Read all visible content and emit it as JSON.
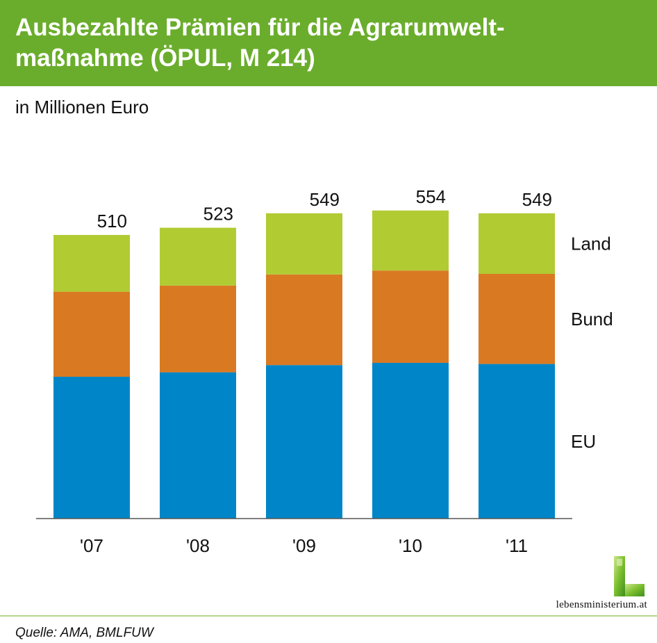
{
  "header": {
    "title_line1": "Ausbezahlte Prämien für die Agrarumwelt-",
    "title_line2": "maßnahme (ÖPUL, M 214)"
  },
  "subtitle": "in Millionen Euro",
  "colors": {
    "header_bg": "#6aad2c",
    "eu": "#0086c8",
    "bund": "#d97a22",
    "land": "#b1cb33"
  },
  "chart_data": {
    "type": "bar",
    "stacked": true,
    "title": "Ausbezahlte Prämien für die Agrarumweltmaßnahme (ÖPUL, M 214)",
    "ylabel": "in Millionen Euro",
    "xlabel": "",
    "categories": [
      "'07",
      "'08",
      "'09",
      "'10",
      "'11"
    ],
    "series": [
      {
        "name": "EU",
        "values": [
          255,
          263,
          276,
          280,
          278
        ]
      },
      {
        "name": "Bund",
        "values": [
          153,
          156,
          163,
          166,
          162
        ]
      },
      {
        "name": "Land",
        "values": [
          102,
          104,
          110,
          108,
          109
        ]
      }
    ],
    "totals": [
      510,
      523,
      549,
      554,
      549
    ],
    "ylim": [
      0,
      600
    ],
    "grid": false,
    "legend": "right, labels beside stack segments"
  },
  "source": "Quelle: AMA, BMLFUW",
  "logo": {
    "text": "lebensministerium.at",
    "icon": "lebensministerium-L-logo"
  }
}
